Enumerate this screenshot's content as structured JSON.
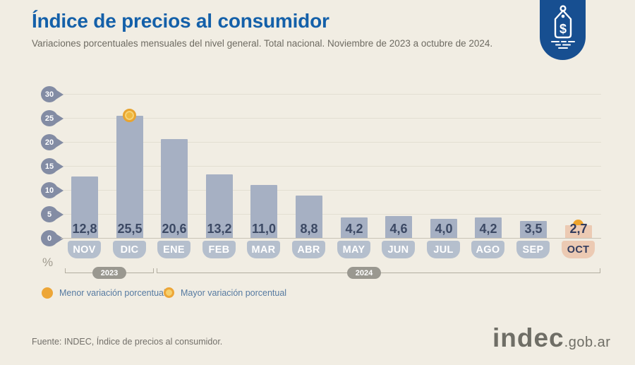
{
  "header": {
    "title": "Índice de precios al consumidor",
    "subtitle": "Variaciones porcentuales mensuales del nivel general. Total nacional. Noviembre de 2023 a octubre de 2024.",
    "badge_icon": "price-tag-icon"
  },
  "chart_data": {
    "type": "bar",
    "title": "Índice de precios al consumidor",
    "subtitle": "Variaciones porcentuales mensuales del nivel general. Total nacional. Noviembre de 2023 a octubre de 2024.",
    "categories": [
      "NOV",
      "DIC",
      "ENE",
      "FEB",
      "MAR",
      "ABR",
      "MAY",
      "JUN",
      "JUL",
      "AGO",
      "SEP",
      "OCT"
    ],
    "values": [
      12.8,
      25.5,
      20.6,
      13.2,
      11.0,
      8.8,
      4.2,
      4.6,
      4.0,
      4.2,
      3.5,
      2.7
    ],
    "value_labels": [
      "12,8",
      "25,5",
      "20,6",
      "13,2",
      "11,0",
      "8,8",
      "4,2",
      "4,6",
      "4,0",
      "4,2",
      "3,5",
      "2,7"
    ],
    "unit_label": "%",
    "ylim": [
      0,
      30
    ],
    "yticks": [
      0,
      5,
      10,
      15,
      20,
      25,
      30
    ],
    "grid": true,
    "year_groups": [
      {
        "label": "2023",
        "months": [
          "NOV",
          "DIC"
        ]
      },
      {
        "label": "2024",
        "months": [
          "ENE",
          "FEB",
          "MAR",
          "ABR",
          "MAY",
          "JUN",
          "JUL",
          "AGO",
          "SEP",
          "OCT"
        ]
      }
    ],
    "max_marker": {
      "month": "DIC",
      "value": 25.5,
      "marker": "ring-dot-icon"
    },
    "min_marker": {
      "month": "OCT",
      "value": 2.7,
      "marker": "solid-dot-icon"
    },
    "highlight_month": "OCT"
  },
  "legend": [
    {
      "label": "Menor variación porcentual",
      "marker": "solid-dot-icon"
    },
    {
      "label": "Mayor variación porcentual",
      "marker": "ring-dot-icon"
    }
  ],
  "footer": {
    "source": "Fuente: INDEC, Índice de precios al consumidor.",
    "logo_text": "indec",
    "logo_suffix": ".gob.ar"
  },
  "colors": {
    "background": "#f1ede3",
    "title_blue": "#1460a9",
    "badge_blue": "#174f91",
    "bar": "#a6b0c3",
    "bar_highlight": "#eccab3",
    "month_pill": "#b5bfcd",
    "value_text": "#3c4964",
    "axis_pin": "#838ca4",
    "marker_orange": "#eda637",
    "legend_text": "#567aa1",
    "year_pill": "#9a9890"
  }
}
